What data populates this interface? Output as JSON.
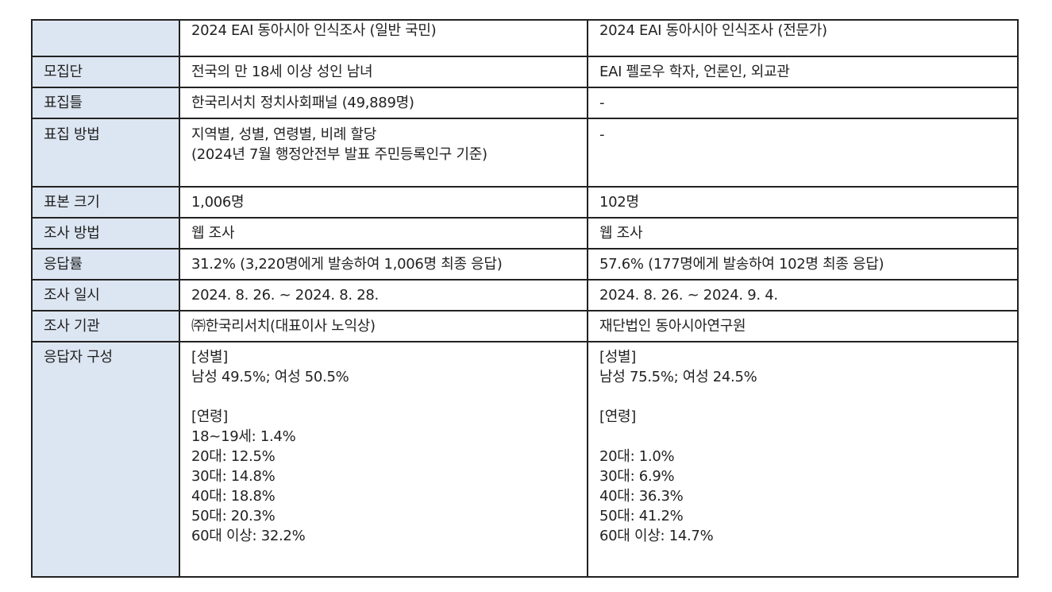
{
  "table": {
    "header": {
      "corner": "",
      "general": "2024 EAI 동아시아 인식조사 (일반 국민)",
      "expert": "2024 EAI 동아시아 인식조사 (전문가)"
    },
    "rows": [
      {
        "label": "모집단",
        "general": [
          "전국의 만 18세 이상 성인 남녀"
        ],
        "expert": [
          "EAI 펠로우 학자, 언론인, 외교관"
        ]
      },
      {
        "label": "표집틀",
        "general": [
          "한국리서치 정치사회패널 (49,889명)"
        ],
        "expert": [
          "-"
        ]
      },
      {
        "label": "표집 방법",
        "general": [
          "지역별, 성별, 연령별, 비례 할당",
          "(2024년 7월 행정안전부 발표 주민등록인구 기준)"
        ],
        "expert": [
          "-"
        ]
      },
      {
        "label": "표본 크기",
        "general": [
          "1,006명"
        ],
        "expert": [
          "102명"
        ]
      },
      {
        "label": "조사 방법",
        "general": [
          "웹 조사"
        ],
        "expert": [
          "웹 조사"
        ]
      },
      {
        "label": "응답률",
        "general": [
          "31.2% (3,220명에게 발송하여 1,006명 최종 응답)"
        ],
        "expert": [
          "57.6% (177명에게 발송하여 102명 최종 응답)"
        ]
      },
      {
        "label": "조사 일시",
        "general": [
          "2024. 8. 26. ~ 2024. 8. 28."
        ],
        "expert": [
          "2024. 8. 26. ~ 2024. 9. 4."
        ]
      },
      {
        "label": "조사 기관",
        "general": [
          "㈜한국리서치(대표이사 노익상)"
        ],
        "expert": [
          "재단법인 동아시아연구원"
        ]
      },
      {
        "label": "응답자 구성",
        "general": [
          "[성별]",
          "남성 49.5%; 여성 50.5%",
          "",
          "[연령]",
          "18~19세: 1.4%",
          "20대: 12.5%",
          "30대: 14.8%",
          "40대: 18.8%",
          "50대: 20.3%",
          "60대 이상: 32.2%"
        ],
        "expert": [
          "[성별]",
          "남성 75.5%; 여성 24.5%",
          "",
          "[연령]",
          "",
          "20대: 1.0%",
          "30대: 6.9%",
          "40대: 36.3%",
          "50대: 41.2%",
          "60대 이상: 14.7%"
        ]
      }
    ]
  }
}
